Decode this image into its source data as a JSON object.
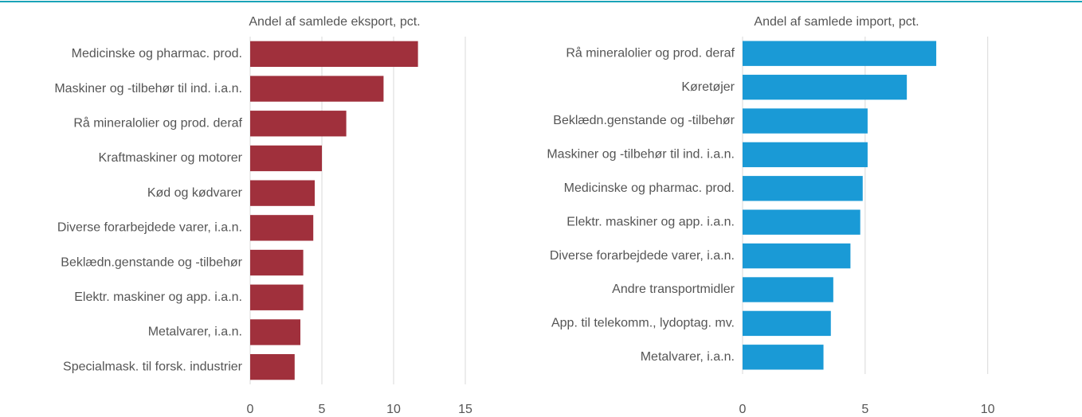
{
  "chart_data": [
    {
      "type": "barh",
      "title": "Andel af samlede eksport, pct.",
      "categories": [
        "Medicinske og pharmac. prod.",
        "Maskiner og -tilbehør til ind. i.a.n.",
        "Rå mineralolier og prod. deraf",
        "Kraftmaskiner og motorer",
        "Kød og kødvarer",
        "Diverse forarbejdede varer, i.a.n.",
        "Beklædn.genstande og -tilbehør",
        "Elektr. maskiner og app. i.a.n.",
        "Metalvarer, i.a.n.",
        "Specialmask. til forsk. industrier"
      ],
      "values": [
        11.7,
        9.3,
        6.7,
        5.0,
        4.5,
        4.4,
        3.7,
        3.7,
        3.5,
        3.1
      ],
      "color": "#a0303c",
      "xlim": [
        0,
        15
      ],
      "xticks": [
        0,
        5,
        10,
        15
      ],
      "grid": true
    },
    {
      "type": "barh",
      "title": "Andel af samlede import, pct.",
      "categories": [
        "Rå mineralolier og prod. deraf",
        "Køretøjer",
        "Beklædn.genstande og -tilbehør",
        "Maskiner og -tilbehør til ind. i.a.n.",
        "Medicinske og pharmac. prod.",
        "Elektr. maskiner og app. i.a.n.",
        "Diverse forarbejdede varer, i.a.n.",
        "Andre transportmidler",
        "App. til telekomm., lydoptag. mv.",
        "Metalvarer, i.a.n."
      ],
      "values": [
        7.9,
        6.7,
        5.1,
        5.1,
        4.9,
        4.8,
        4.4,
        3.7,
        3.6,
        3.3
      ],
      "color": "#1a9ad6",
      "xlim": [
        0,
        13
      ],
      "xticks": [
        0,
        5,
        10
      ],
      "grid": true
    }
  ]
}
